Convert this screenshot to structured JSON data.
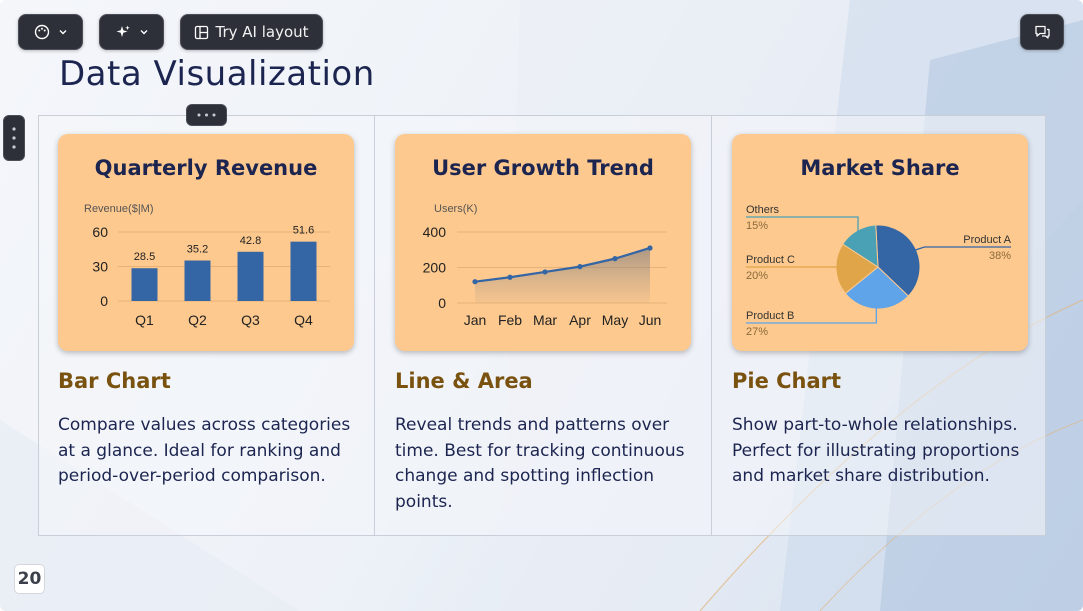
{
  "toolbar": {
    "theme_icon": "palette-icon",
    "magic_icon": "sparkles-icon",
    "ai_layout_label": "Try AI layout",
    "comment_icon": "comment-icon"
  },
  "slide": {
    "title": "Data Visualization",
    "page_number": "20"
  },
  "columns": [
    {
      "heading": "Bar Chart",
      "description": "Compare values across categories at a glance. Ideal for ranking and period-over-period comparison."
    },
    {
      "heading": "Line & Area",
      "description": "Reveal trends and patterns over time. Best for tracking continuous change and spotting inflection points."
    },
    {
      "heading": "Pie Chart",
      "description": "Show part-to-whole relationships. Perfect for illustrating proportions and market share distribution."
    }
  ],
  "colors": {
    "card_bg": "#fec98e",
    "series": "#3465a4",
    "heading": "#7a5210",
    "title": "#1c2550"
  },
  "chart_data": [
    {
      "type": "bar",
      "title": "Quarterly Revenue",
      "ylabel": "Revenue($|M)",
      "categories": [
        "Q1",
        "Q2",
        "Q3",
        "Q4"
      ],
      "values": [
        28.5,
        35.2,
        42.8,
        51.6
      ],
      "data_labels": [
        "28.5",
        "35.2",
        "42.8",
        "51.6"
      ],
      "yticks": [
        "0",
        "30",
        "60"
      ],
      "ylim": [
        0,
        60
      ],
      "grid": true
    },
    {
      "type": "area",
      "title": "User Growth Trend",
      "ylabel": "Users(K)",
      "categories": [
        "Jan",
        "Feb",
        "Mar",
        "Apr",
        "May",
        "Jun"
      ],
      "values": [
        120,
        145,
        175,
        205,
        250,
        310
      ],
      "yticks": [
        "0",
        "200",
        "400"
      ],
      "ylim": [
        0,
        400
      ],
      "grid": true
    },
    {
      "type": "pie",
      "title": "Market Share",
      "slices": [
        {
          "name": "Product A",
          "value": 38,
          "label": "38%",
          "color": "#3465a4"
        },
        {
          "name": "Product B",
          "value": 27,
          "label": "27%",
          "color": "#5fa4e8"
        },
        {
          "name": "Product C",
          "value": 20,
          "label": "20%",
          "color": "#e0a548"
        },
        {
          "name": "Others",
          "value": 15,
          "label": "15%",
          "color": "#4aa0b5"
        }
      ]
    }
  ]
}
